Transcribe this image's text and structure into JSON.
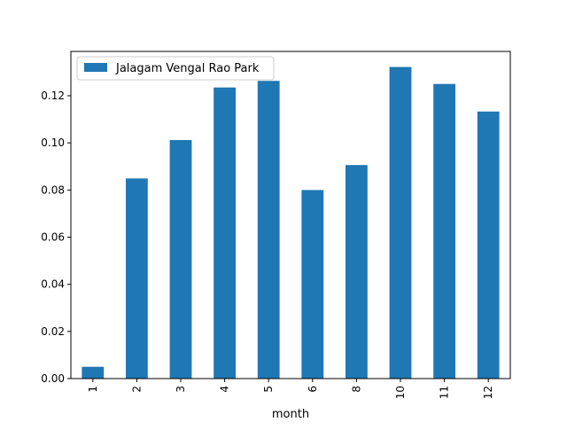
{
  "chart_data": {
    "type": "bar",
    "title": "",
    "xlabel": "month",
    "ylabel": "",
    "categories": [
      "1",
      "2",
      "3",
      "4",
      "5",
      "6",
      "8",
      "10",
      "11",
      "12"
    ],
    "series": [
      {
        "name": "Jalagam Vengal Rao Park",
        "color": "#1f77b4",
        "values": [
          0.005,
          0.0849,
          0.1012,
          0.1235,
          0.1263,
          0.08,
          0.0906,
          0.1322,
          0.125,
          0.1133
        ]
      }
    ],
    "ylim": [
      0,
      0.1388
    ],
    "yticks": [
      0.0,
      0.02,
      0.04,
      0.06,
      0.08,
      0.1,
      0.12
    ],
    "ytick_labels": [
      "0.00",
      "0.02",
      "0.04",
      "0.06",
      "0.08",
      "0.10",
      "0.12"
    ],
    "xtick_rotation_deg": 90,
    "grid": false,
    "legend_position": "top-left"
  }
}
